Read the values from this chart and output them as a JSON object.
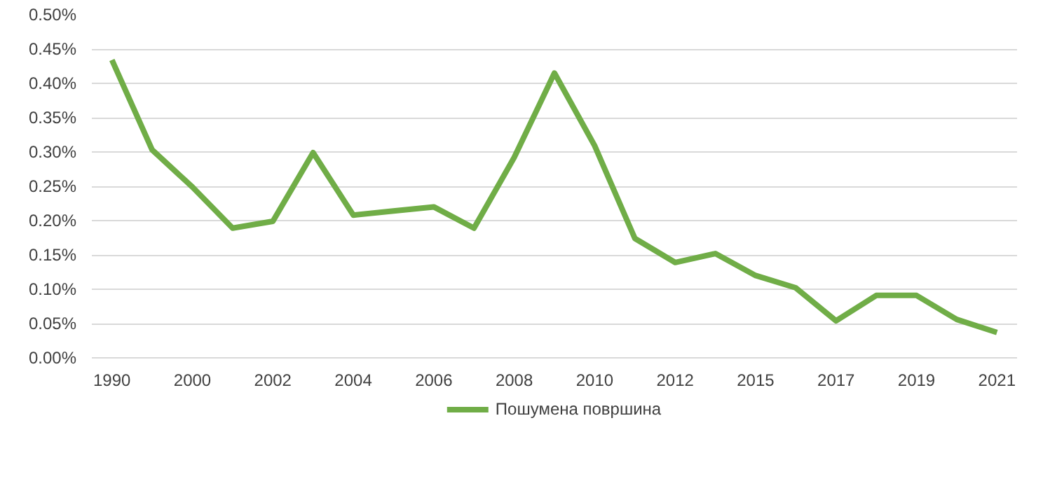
{
  "chart_data": {
    "type": "line",
    "categories": [
      "1990",
      null,
      "2000",
      null,
      "2002",
      null,
      "2004",
      null,
      "2006",
      null,
      "2008",
      null,
      "2010",
      null,
      "2012",
      null,
      "2015",
      null,
      "2017",
      null,
      "2019",
      null,
      "2021"
    ],
    "series": [
      {
        "name": "Пошумена површина",
        "color": "#70ad47",
        "values": [
          0.434,
          0.303,
          0.249,
          0.189,
          0.199,
          0.299,
          0.208,
          0.214,
          0.22,
          0.189,
          0.292,
          0.415,
          0.309,
          0.174,
          0.139,
          0.152,
          0.12,
          0.102,
          0.054,
          0.091,
          0.091,
          0.056,
          0.037
        ]
      }
    ],
    "ylim": [
      0,
      0.5
    ],
    "yticks": [
      {
        "value": 0,
        "label": "0.00%"
      },
      {
        "value": 0.05,
        "label": "0.05%"
      },
      {
        "value": 0.1,
        "label": "0.10%"
      },
      {
        "value": 0.15,
        "label": "0.15%"
      },
      {
        "value": 0.2,
        "label": "0.20%"
      },
      {
        "value": 0.25,
        "label": "0.25%"
      },
      {
        "value": 0.3,
        "label": "0.30%"
      },
      {
        "value": 0.35,
        "label": "0.35%"
      },
      {
        "value": 0.4,
        "label": "0.40%"
      },
      {
        "value": 0.45,
        "label": "0.45%"
      },
      {
        "value": 0.5,
        "label": "0.50%"
      }
    ],
    "grid": "y",
    "legend": "bottom",
    "marker": "none",
    "line_style": "solid"
  }
}
